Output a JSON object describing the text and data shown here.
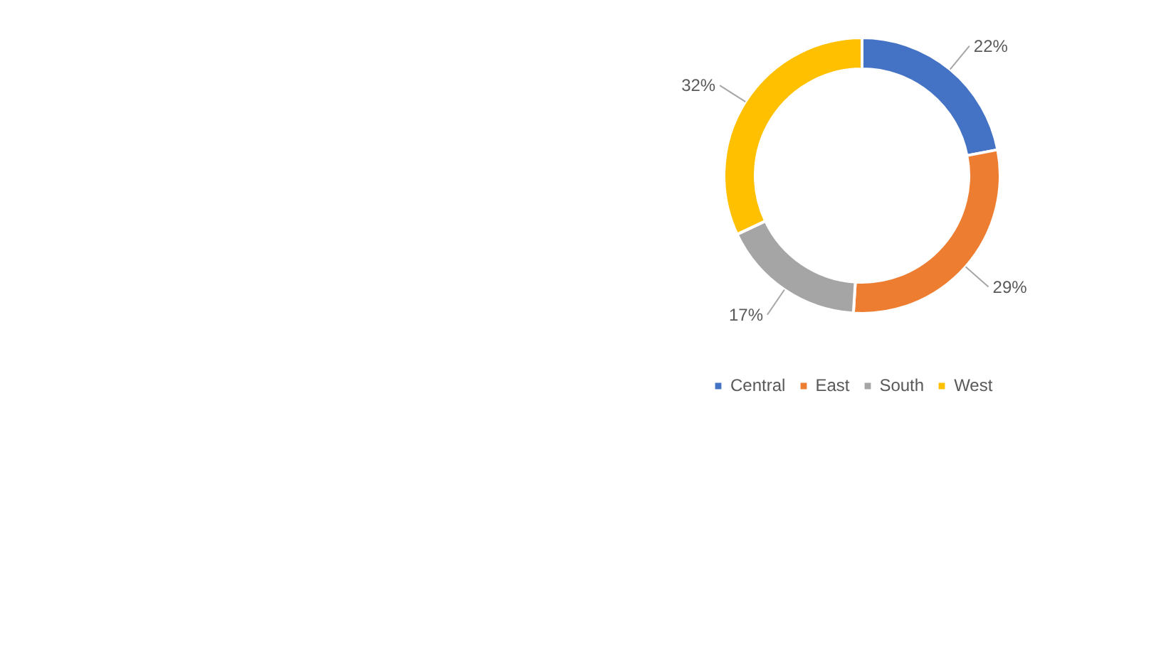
{
  "chart_data": {
    "type": "donut",
    "categories": [
      "Central",
      "East",
      "South",
      "West"
    ],
    "values": [
      22,
      29,
      17,
      32
    ],
    "colors": [
      "#4472c4",
      "#ed7d31",
      "#a5a5a5",
      "#ffc000"
    ],
    "value_labels": [
      "22%",
      "29%",
      "17%",
      "32%"
    ],
    "legend": "bottom"
  }
}
